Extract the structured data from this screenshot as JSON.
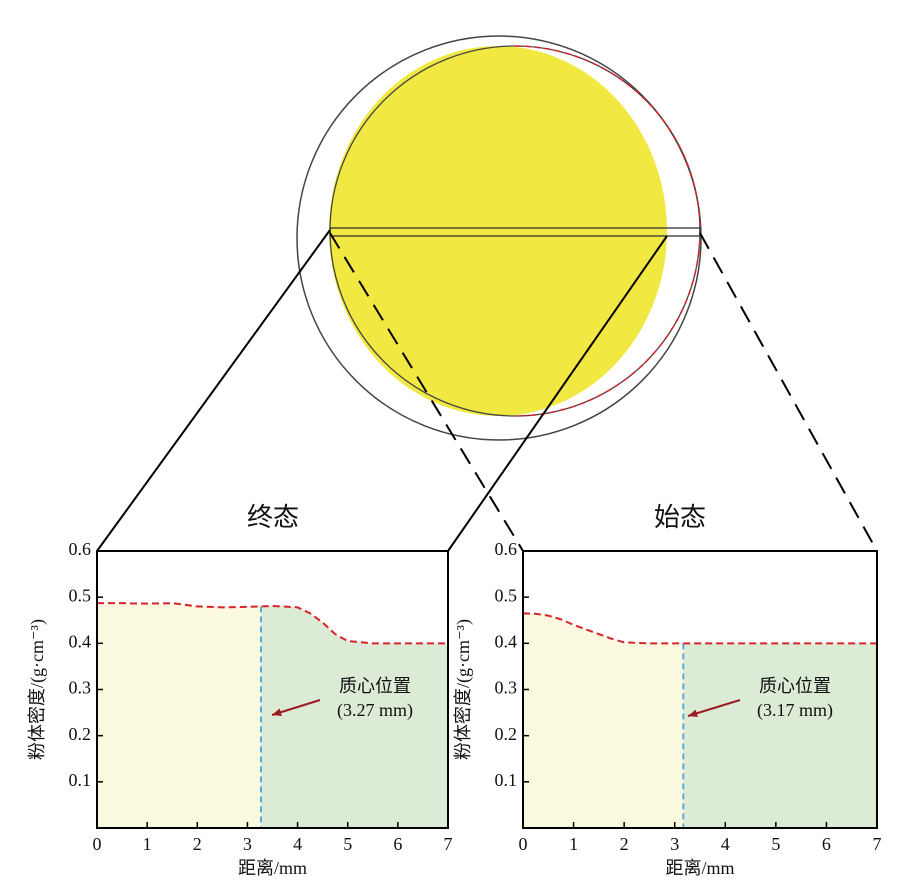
{
  "chart_data": [
    {
      "type": "line",
      "title": "终态",
      "x_label": "距离/mm",
      "y_label": "粉体密度/(g·cm⁻³)",
      "x": [
        0,
        0.5,
        1,
        1.5,
        2,
        2.5,
        3,
        3.5,
        4,
        4.25,
        4.5,
        4.75,
        5,
        5.5,
        6,
        6.5,
        7
      ],
      "series": [
        {
          "color": "#d9232a",
          "values": [
            0.487,
            0.487,
            0.486,
            0.487,
            0.48,
            0.478,
            0.479,
            0.481,
            0.478,
            0.465,
            0.445,
            0.42,
            0.405,
            0.4,
            0.4,
            0.4,
            0.4
          ]
        }
      ],
      "centroid": 3.27,
      "annotation": [
        "质心位置",
        "(3.27 mm)"
      ],
      "region_colors": [
        "#fbf9e0",
        "#dcebd6"
      ],
      "centroid_color": "#5aa9d6",
      "xlim": [
        0,
        7
      ],
      "ylim": [
        0,
        0.6
      ],
      "xticks": [
        0,
        1,
        2,
        3,
        4,
        5,
        6,
        7
      ],
      "yticks": [
        0.1,
        0.2,
        0.3,
        0.4,
        0.5,
        0.6
      ]
    },
    {
      "type": "line",
      "title": "始态",
      "x_label": "距离/mm",
      "y_label": "粉体密度/(g·cm⁻³)",
      "x": [
        0,
        0.25,
        0.5,
        0.75,
        1,
        1.25,
        1.5,
        1.75,
        2,
        2.5,
        3,
        4,
        5,
        6,
        7
      ],
      "series": [
        {
          "color": "#d9232a",
          "values": [
            0.465,
            0.464,
            0.46,
            0.452,
            0.44,
            0.43,
            0.42,
            0.41,
            0.402,
            0.4,
            0.4,
            0.4,
            0.4,
            0.4,
            0.4
          ]
        }
      ],
      "centroid": 3.17,
      "annotation": [
        "质心位置",
        "(3.17 mm)"
      ],
      "region_colors": [
        "#fbf9e0",
        "#dcebd6"
      ],
      "centroid_color": "#5aa9d6",
      "xlim": [
        0,
        7
      ],
      "ylim": [
        0,
        0.6
      ],
      "xticks": [
        0,
        1,
        2,
        3,
        4,
        5,
        6,
        7
      ],
      "yticks": [
        0.1,
        0.2,
        0.3,
        0.4,
        0.5,
        0.6
      ]
    }
  ]
}
